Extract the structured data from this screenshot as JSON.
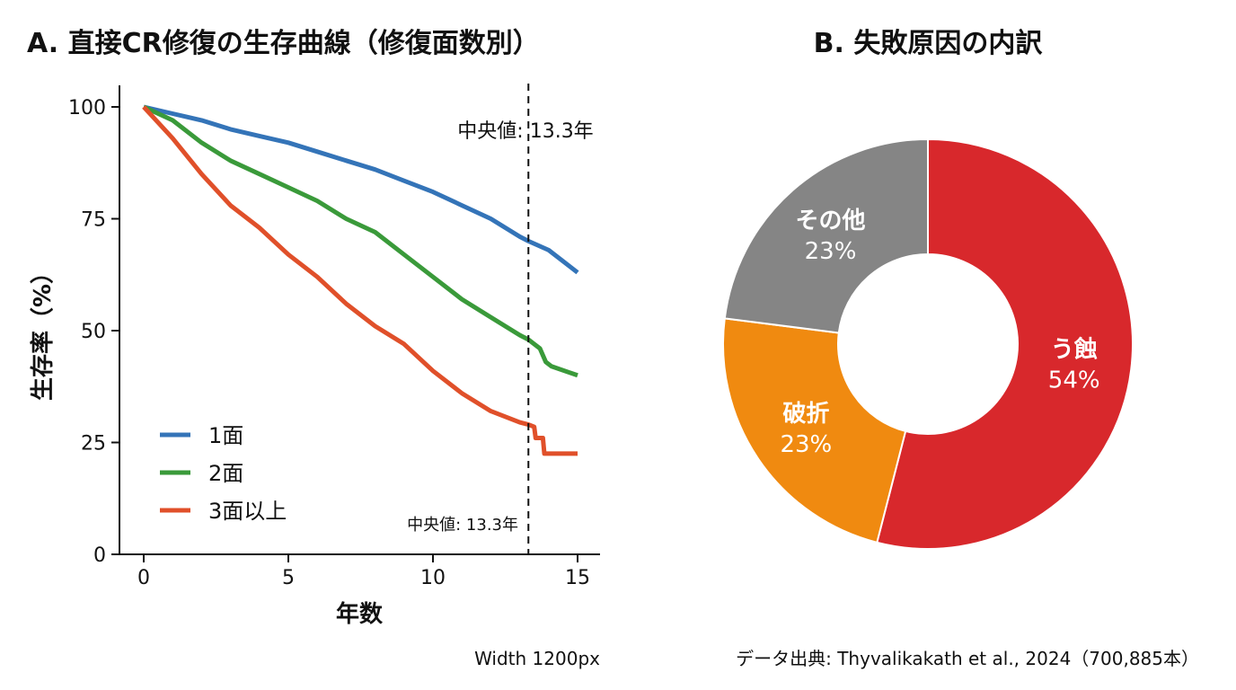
{
  "chart_data": [
    {
      "type": "line",
      "title": "A. 直接CR修復の生存曲線（修復面数別）",
      "xlabel": "年数",
      "ylabel": "生存率（%）",
      "xlim": [
        0,
        15
      ],
      "ylim": [
        0,
        100
      ],
      "xticks": [
        "0",
        "5",
        "10",
        "15"
      ],
      "yticks": [
        "0",
        "25",
        "50",
        "75",
        "100"
      ],
      "grid": false,
      "legend_position": "bottom-left",
      "annotations": [
        "中央値: 13.3年",
        "中央値: 13.3年"
      ],
      "vline_x": 13.3,
      "series": [
        {
          "name": "1面",
          "color": "#3474b8",
          "x": [
            0,
            1,
            2,
            3,
            4,
            5,
            6,
            7,
            8,
            9,
            10,
            11,
            12,
            13,
            13.3,
            14,
            15
          ],
          "y": [
            100,
            98.5,
            97,
            95,
            93.5,
            92,
            90,
            88,
            86,
            83.5,
            81,
            78,
            75,
            71,
            70,
            68,
            63
          ]
        },
        {
          "name": "2面",
          "color": "#3a9a3a",
          "x": [
            0,
            1,
            2,
            3,
            4,
            5,
            6,
            7,
            8,
            9,
            10,
            11,
            12,
            13,
            13.3,
            13.7,
            13.9,
            14.1,
            15
          ],
          "y": [
            100,
            97,
            92,
            88,
            85,
            82,
            79,
            75,
            72,
            67,
            62,
            57,
            53,
            49,
            48,
            46,
            43,
            42,
            40
          ]
        },
        {
          "name": "3面以上",
          "color": "#e0502a",
          "x": [
            0,
            1,
            2,
            3,
            4,
            5,
            6,
            7,
            8,
            9,
            10,
            11,
            12,
            13,
            13.3,
            13.5,
            13.55,
            13.8,
            13.85,
            14.6,
            15
          ],
          "y": [
            100,
            93,
            85,
            78,
            73,
            67,
            62,
            56,
            51,
            47,
            41,
            36,
            32,
            29.5,
            29,
            28.5,
            26,
            26,
            22.5,
            22.5,
            22.5
          ]
        }
      ]
    },
    {
      "type": "pie",
      "title": "B. 失敗原因の内訳",
      "donut": true,
      "slices": [
        {
          "label": "う蝕",
          "value": 54,
          "text": "54%",
          "color": "#d8282c"
        },
        {
          "label": "破折",
          "value": 23,
          "text": "23%",
          "color": "#f08a10"
        },
        {
          "label": "その他",
          "value": 23,
          "text": "23%",
          "color": "#858585"
        }
      ]
    }
  ],
  "footer": {
    "width_note": "Width 1200px",
    "source": "データ出典: Thyvalikakath et al., 2024（700,885本）"
  }
}
